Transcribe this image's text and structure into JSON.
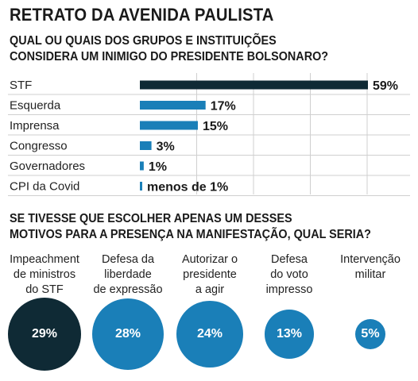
{
  "title": "RETRATO DA AVENIDA PAULISTA",
  "question1": {
    "line1": "QUAL OU QUAIS DOS GRUPOS E INSTITUIÇÕES",
    "line2": "CONSIDERA UM INIMIGO DO PRESIDENTE BOLSONARO?"
  },
  "question2": {
    "line1": "SE TIVESSE QUE ESCOLHER APENAS UM DESSES",
    "line2": "MOTIVOS PARA A PRESENÇA NA MANIFESTAÇÃO, QUAL SERIA?"
  },
  "colors": {
    "dark": "#0f2a35",
    "blue": "#1a7fb8",
    "grid": "#cfcfcf"
  },
  "chart_data": [
    {
      "type": "bar",
      "orientation": "horizontal",
      "categories": [
        "STF",
        "Esquerda",
        "Imprensa",
        "Congresso",
        "Governadores",
        "CPI da Covid"
      ],
      "values": [
        59,
        17,
        15,
        3,
        1,
        0.5
      ],
      "value_labels": [
        "59%",
        "17%",
        "15%",
        "3%",
        "1%",
        "menos de 1%"
      ],
      "highlight_index": 0,
      "xlim": [
        0,
        60
      ],
      "grid": true
    },
    {
      "type": "bubble",
      "categories": [
        [
          "Impeachment",
          "de ministros",
          "do STF"
        ],
        [
          "Defesa da",
          "liberdade",
          "de expressão"
        ],
        [
          "Autorizar o",
          "presidente",
          "a agir"
        ],
        [
          "Defesa",
          "do voto",
          "impresso"
        ],
        [
          "Intervenção",
          "militar"
        ]
      ],
      "values": [
        29,
        28,
        24,
        13,
        5
      ],
      "value_labels": [
        "29%",
        "28%",
        "24%",
        "13%",
        "5%"
      ],
      "highlight_index": 0
    }
  ]
}
